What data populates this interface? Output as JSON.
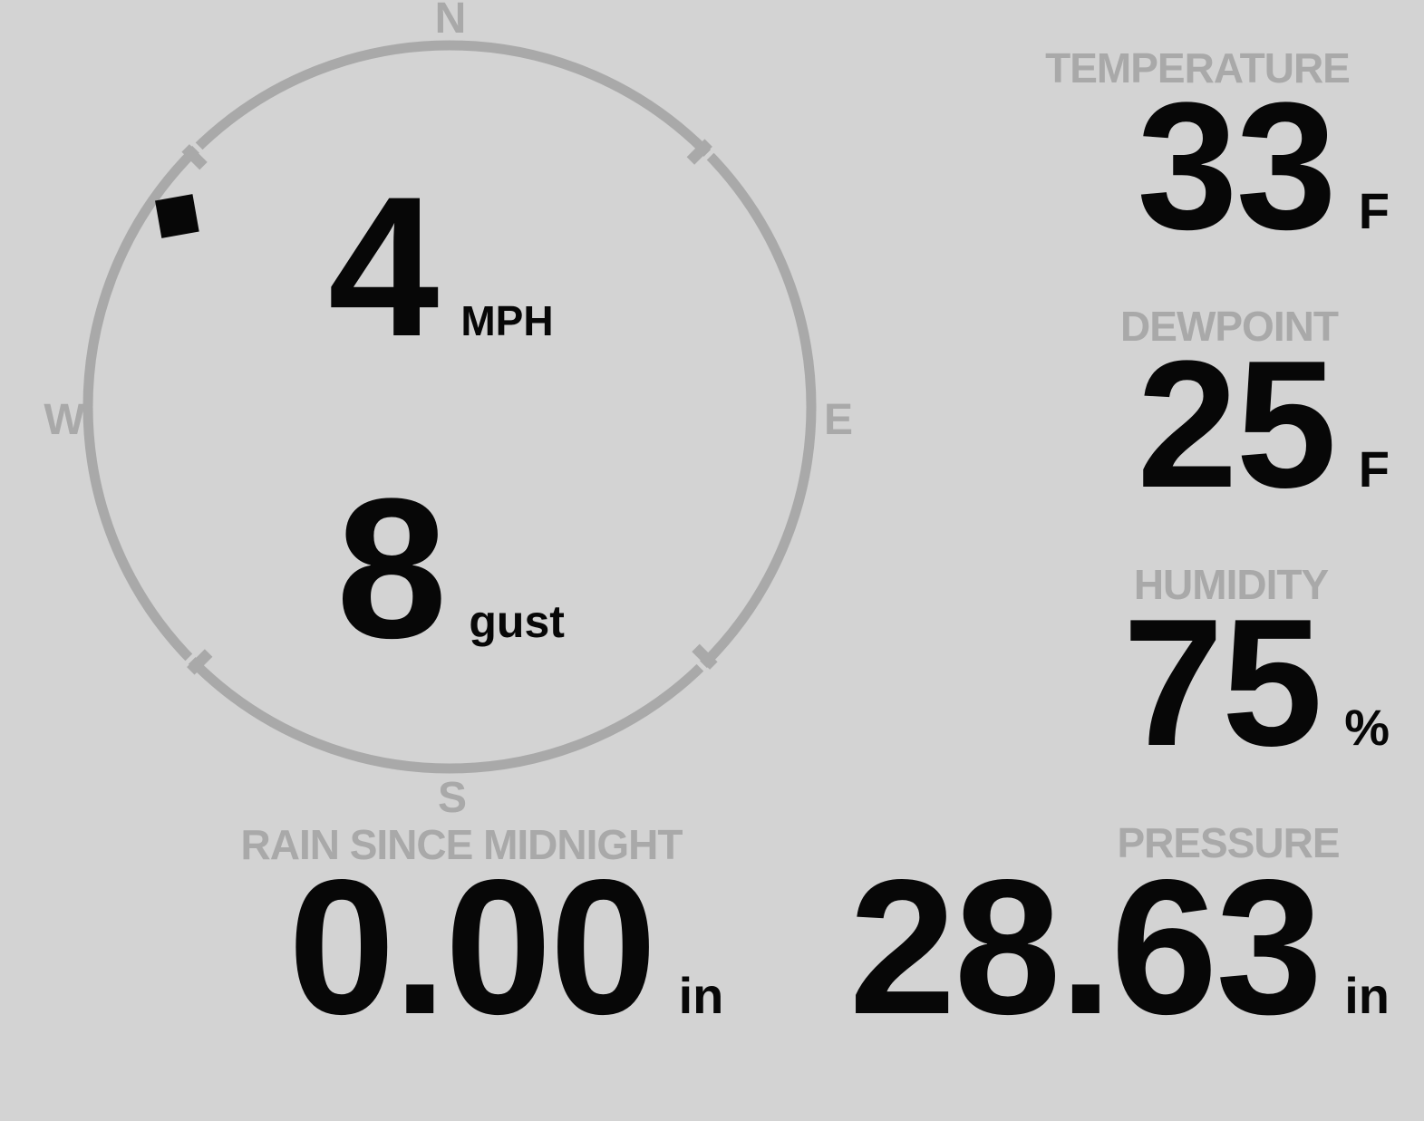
{
  "colors": {
    "background": "#d3d3d3",
    "muted": "#a9a9a9",
    "ink": "#070707"
  },
  "compass": {
    "cardinals": {
      "n": "N",
      "e": "E",
      "s": "S",
      "w": "W"
    },
    "speed": {
      "value": "4",
      "unit": "MPH"
    },
    "gust": {
      "value": "8",
      "unit": "gust"
    },
    "direction_deg": 305
  },
  "metrics": {
    "temperature": {
      "label": "TEMPERATURE",
      "value": "33",
      "unit": "F"
    },
    "dewpoint": {
      "label": "DEWPOINT",
      "value": "25",
      "unit": "F"
    },
    "humidity": {
      "label": "HUMIDITY",
      "value": "75",
      "unit": "%"
    },
    "rain": {
      "label": "RAIN SINCE MIDNIGHT",
      "value": "0.00",
      "unit": "in"
    },
    "pressure": {
      "label": "PRESSURE",
      "value": "28.63",
      "unit": "in"
    }
  }
}
